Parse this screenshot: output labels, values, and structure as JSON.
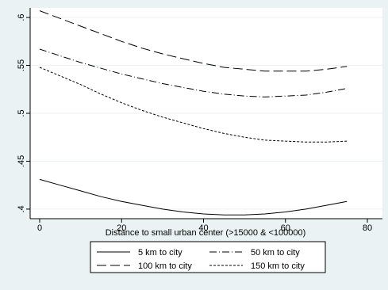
{
  "chart_data": {
    "type": "line",
    "title": "",
    "xlabel": "Distance to small urban center (>15000 & <100000)",
    "ylabel": "",
    "xlim": [
      0,
      80
    ],
    "ylim": [
      0.39,
      0.61
    ],
    "xticks": [
      0,
      20,
      40,
      60,
      80
    ],
    "xtick_labels": [
      "0",
      "20",
      "40",
      "60",
      "80"
    ],
    "yticks": [
      0.4,
      0.45,
      0.5,
      0.55,
      0.6
    ],
    "ytick_labels": [
      ".4",
      ".45",
      ".5",
      ".55",
      ".6"
    ],
    "grid": "horizontal",
    "legend_position": "bottom",
    "series": [
      {
        "name": "5 km to city",
        "dash": "solid",
        "x": [
          0,
          5,
          10,
          15,
          20,
          25,
          30,
          35,
          40,
          45,
          50,
          55,
          60,
          65,
          70,
          75
        ],
        "y": [
          0.431,
          0.425,
          0.419,
          0.413,
          0.408,
          0.404,
          0.4,
          0.397,
          0.395,
          0.394,
          0.394,
          0.395,
          0.397,
          0.4,
          0.404,
          0.408
        ]
      },
      {
        "name": "50 km to city",
        "dash": "dashdot",
        "x": [
          0,
          5,
          10,
          15,
          20,
          25,
          30,
          35,
          40,
          45,
          50,
          55,
          60,
          65,
          70,
          75
        ],
        "y": [
          0.567,
          0.56,
          0.553,
          0.547,
          0.541,
          0.536,
          0.531,
          0.527,
          0.523,
          0.52,
          0.518,
          0.517,
          0.518,
          0.519,
          0.522,
          0.526
        ]
      },
      {
        "name": "100 km to city",
        "dash": "longdash",
        "x": [
          0,
          5,
          10,
          15,
          20,
          25,
          30,
          35,
          40,
          45,
          50,
          55,
          60,
          65,
          70,
          75
        ],
        "y": [
          0.607,
          0.599,
          0.591,
          0.583,
          0.575,
          0.568,
          0.562,
          0.557,
          0.552,
          0.548,
          0.546,
          0.544,
          0.544,
          0.544,
          0.546,
          0.549
        ]
      },
      {
        "name": "150 km to city",
        "dash": "shortdash",
        "x": [
          0,
          5,
          10,
          15,
          20,
          25,
          30,
          35,
          40,
          45,
          50,
          55,
          60,
          65,
          70,
          75
        ],
        "y": [
          0.548,
          0.539,
          0.53,
          0.52,
          0.511,
          0.503,
          0.496,
          0.49,
          0.484,
          0.479,
          0.475,
          0.472,
          0.471,
          0.47,
          0.47,
          0.471
        ]
      }
    ],
    "colors": {
      "background": "#eaf2f3",
      "plot_area": "#ffffff",
      "line": "#000000",
      "grid": "#eaf2f3"
    }
  }
}
